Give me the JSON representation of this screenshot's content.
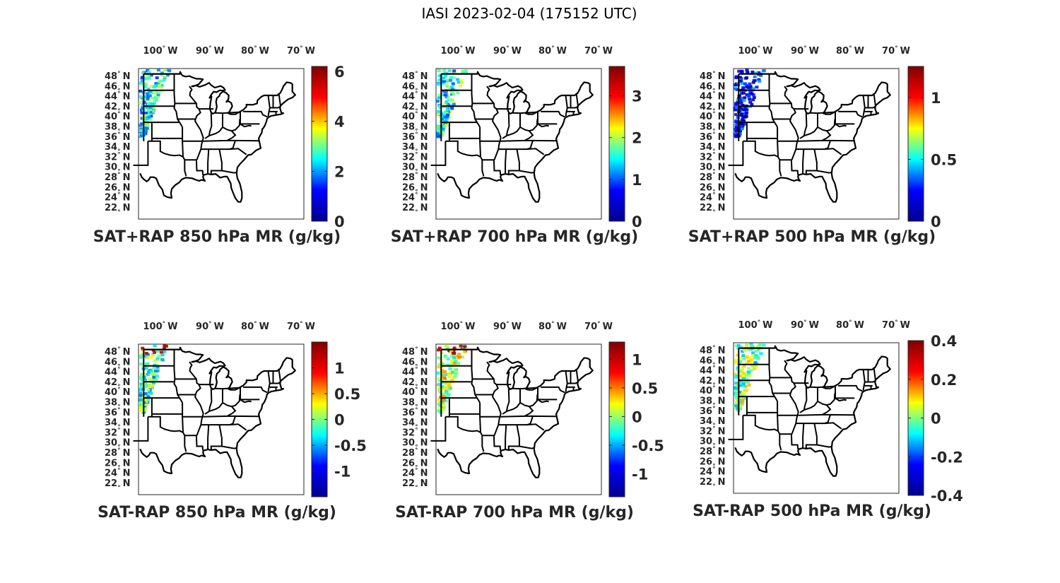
{
  "figure_title": "IASI 2023-02-04 (175152 UTC)",
  "lon_ticks": [
    {
      "deg": "100",
      "hemi": "W"
    },
    {
      "deg": "90",
      "hemi": "W"
    },
    {
      "deg": "80",
      "hemi": "W"
    },
    {
      "deg": "70",
      "hemi": "W"
    }
  ],
  "lat_ticks": [
    {
      "deg": "48",
      "hemi": "N"
    },
    {
      "deg": "46",
      "hemi": "N"
    },
    {
      "deg": "44",
      "hemi": "N"
    },
    {
      "deg": "42",
      "hemi": "N"
    },
    {
      "deg": "40",
      "hemi": "N"
    },
    {
      "deg": "38",
      "hemi": "N"
    },
    {
      "deg": "36",
      "hemi": "N"
    },
    {
      "deg": "34",
      "hemi": "N"
    },
    {
      "deg": "32",
      "hemi": "N"
    },
    {
      "deg": "30",
      "hemi": "N"
    },
    {
      "deg": "28",
      "hemi": "N"
    },
    {
      "deg": "26",
      "hemi": "N"
    },
    {
      "deg": "24",
      "hemi": "N"
    },
    {
      "deg": "22",
      "hemi": "N"
    }
  ],
  "colormap": "jet",
  "colormap_stops": [
    "#00008f",
    "#0000ff",
    "#00ffff",
    "#ffff00",
    "#ff0000",
    "#800000"
  ],
  "panels": [
    {
      "title": "SAT+RAP 850 hPa MR (g/kg)",
      "cbar_range": [
        0,
        6.2
      ],
      "cbar_ticks": [
        6,
        4,
        2,
        0
      ],
      "cbar_tick_labels": [
        "6",
        "4",
        "2",
        "0"
      ],
      "swath_level": 0.4
    },
    {
      "title": "SAT+RAP 700 hPa MR (g/kg)",
      "cbar_range": [
        0,
        3.7
      ],
      "cbar_ticks": [
        3,
        2,
        1,
        0
      ],
      "cbar_tick_labels": [
        "3",
        "2",
        "1",
        "0"
      ],
      "swath_level": 0.42
    },
    {
      "title": "SAT+RAP 500 hPa MR (g/kg)",
      "cbar_range": [
        0,
        1.25
      ],
      "cbar_ticks": [
        1,
        0.5,
        0
      ],
      "cbar_tick_labels": [
        "1",
        "0.5",
        "0"
      ],
      "swath_level": 0.18
    },
    {
      "title": "SAT-RAP 850 hPa MR (g/kg)",
      "cbar_range": [
        -1.5,
        1.5
      ],
      "cbar_ticks": [
        1,
        0.5,
        0,
        -0.5,
        -1
      ],
      "cbar_tick_labels": [
        "1",
        "0.5",
        "0",
        "-0.5",
        "-1"
      ],
      "swath_level": 0.45
    },
    {
      "title": "SAT-RAP 700 hPa MR (g/kg)",
      "cbar_range": [
        -1.4,
        1.3
      ],
      "cbar_ticks": [
        1,
        0.5,
        0,
        -0.5,
        -1
      ],
      "cbar_tick_labels": [
        "1",
        "0.5",
        "0",
        "-0.5",
        "-1"
      ],
      "swath_level": 0.55
    },
    {
      "title": "SAT-RAP 500 hPa MR (g/kg)",
      "cbar_range": [
        -0.4,
        0.4
      ],
      "cbar_ticks": [
        0.4,
        0.2,
        0,
        -0.2,
        -0.4
      ],
      "cbar_tick_labels": [
        "0.4",
        "0.2",
        "0",
        "-0.2",
        "-0.4"
      ],
      "swath_level": 0.5
    }
  ]
}
